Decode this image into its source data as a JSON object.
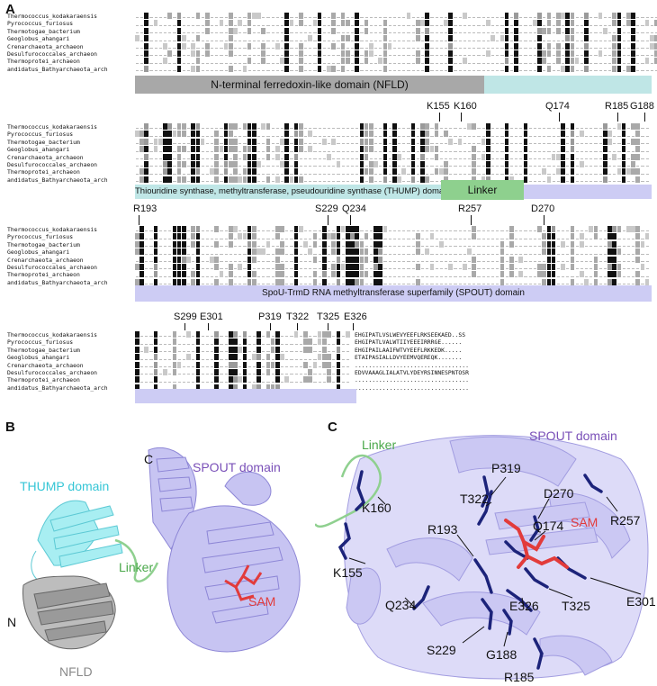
{
  "panels": {
    "a": "A",
    "b": "B",
    "c": "C"
  },
  "species": [
    "Thermococcus_kodakaraensis",
    "Pyrococcus_furiosus",
    "Thermotogae_bacterium",
    "Geoglobus_ahangari",
    "Crenarchaeota_archaeon",
    "Desulfurococcales_archaeon",
    "Thermoprotei_archaeon",
    "andidatus_Bathyarchaeota_arch"
  ],
  "block1": {
    "domain_nfld": "N-terminal ferredoxin-like domain (NFLD)",
    "colors": {
      "nfld": "#a8a8a8",
      "thump": "#bfe6e6"
    }
  },
  "block2": {
    "residues": [
      "K155",
      "K160",
      "Q174",
      "R185",
      "G188"
    ],
    "domain_thump": "Thiouridine synthase, methyltransferase, pseudouridine synthase (THUMP) domain",
    "domain_linker": "Linker",
    "colors": {
      "thump": "#bfe6e6",
      "linker": "#8ed08e",
      "spout": "#cdccf4"
    }
  },
  "block3": {
    "residues": [
      "R193",
      "S229",
      "Q234",
      "R257",
      "D270"
    ],
    "domain_spout": "SpoU-TrmD RNA methyltransferase superfamily (SPOUT) domain",
    "colors": {
      "spout": "#cdccf4"
    }
  },
  "block4": {
    "residues": [
      "S299",
      "E301",
      "P319",
      "T322",
      "T325",
      "E326"
    ],
    "tails": [
      "EHGIPATLVSLWEVYEEFLRKSEEKAED..SS",
      "EHGIPATLVALWTIIYEEEIRRRGE......",
      "EHGIPAILAAIFWTVYEEFLRKKEDK.....",
      "ETAIPASIALLDVYEEMVQEREQK.......",
      ".................................",
      "EDVVAAAGLIALATVLYDEYRSINNESPNTOSR",
      ".................................",
      "................................."
    ],
    "colors": {
      "spout": "#cdccf4"
    }
  },
  "panel_b": {
    "c_terminus": "C",
    "n_terminus": "N",
    "thump": "THUMP domain",
    "spout": "SPOUT domain",
    "linker": "Linker",
    "sam": "SAM",
    "nfld": "NFLD",
    "colors": {
      "thump": "#5cd6e0",
      "spout": "#8d86d6",
      "linker": "#6bbf6b",
      "sam": "#e03a3a",
      "nfld": "#8a8a8a"
    }
  },
  "panel_c": {
    "spout": "SPOUT domain",
    "linker": "Linker",
    "sam": "SAM",
    "residues": [
      "P319",
      "T322",
      "D270",
      "K160",
      "R257",
      "R193",
      "Q174",
      "K155",
      "Q234",
      "E326",
      "T325",
      "E301",
      "S229",
      "G188",
      "R185"
    ],
    "colors": {
      "residue": "#1c237a",
      "sam": "#e03a3a",
      "spout": "#8d86d6",
      "linker": "#6bbf6b"
    }
  }
}
